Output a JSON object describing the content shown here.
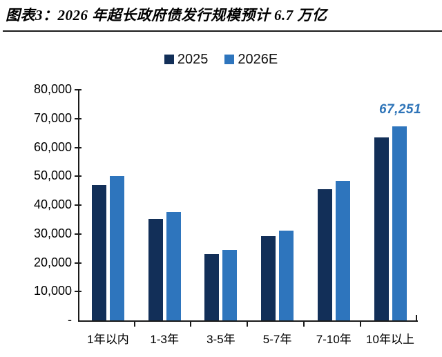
{
  "figure": {
    "title": "图表3：2026 年超长政府债发行规模预计 6.7 万亿"
  },
  "chart_data": {
    "type": "bar",
    "title": "图表3：2026 年超长政府债发行规模预计 6.7 万亿",
    "categories": [
      "1年以内",
      "1-3年",
      "3-5年",
      "5-7年",
      "7-10年",
      "10年以上"
    ],
    "series": [
      {
        "name": "2025",
        "color": "#122f58",
        "values": [
          47000,
          35200,
          23000,
          29200,
          45500,
          63500
        ]
      },
      {
        "name": "2026E",
        "color": "#2e75bd",
        "values": [
          50000,
          37500,
          24500,
          31200,
          48400,
          67251
        ]
      }
    ],
    "ylim": [
      0,
      80000
    ],
    "ytick_step": 10000,
    "ytick_labels": [
      "-",
      "10,000",
      "20,000",
      "30,000",
      "40,000",
      "50,000",
      "60,000",
      "70,000",
      "80,000"
    ],
    "xlabel": "",
    "ylabel": "",
    "grid": false,
    "legend_position": "top-center",
    "annotation": {
      "text": "67,251",
      "series": "2026E",
      "category": "10年以上",
      "color": "#2e74b8"
    },
    "axis_color": "#1a1a1a"
  }
}
